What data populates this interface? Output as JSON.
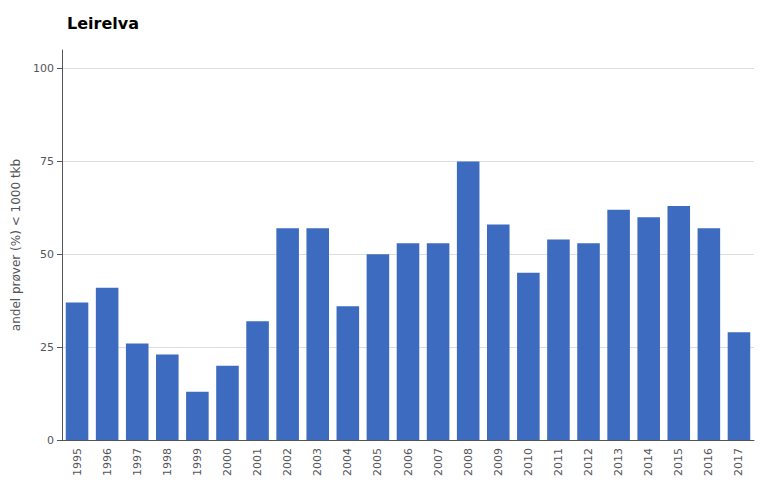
{
  "chart_data": {
    "type": "bar",
    "title": "Leirelva",
    "ylabel": "andel prøver (%) < 1000 tkb",
    "categories": [
      "1995",
      "1996",
      "1997",
      "1998",
      "1999",
      "2000",
      "2001",
      "2002",
      "2003",
      "2004",
      "2005",
      "2006",
      "2007",
      "2008",
      "2009",
      "2010",
      "2011",
      "2012",
      "2013",
      "2014",
      "2015",
      "2016",
      "2017"
    ],
    "values": [
      37,
      41,
      26,
      23,
      13,
      20,
      32,
      57,
      57,
      36,
      50,
      53,
      53,
      75,
      58,
      45,
      54,
      53,
      62,
      60,
      63,
      57,
      29
    ],
    "color": "#3d6bbf",
    "ylim": [
      0,
      105
    ],
    "yticks": [
      0,
      25,
      50,
      75,
      100
    ],
    "grid": true
  }
}
